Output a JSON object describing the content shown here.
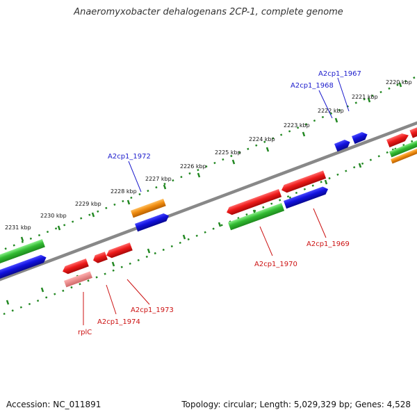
{
  "title": "Anaeromyxobacter dehalogenans 2CP-1, complete genome",
  "footer": {
    "accession": "Accession: NC_011891",
    "summary": "Topology: circular; Length: 5,029,329 bp; Genes: 4,528"
  },
  "kbp_labels": [
    "2220 kbp",
    "2221 kbp",
    "2222 kbp",
    "2223 kbp",
    "2224 kbp",
    "2225 kbp",
    "2226 kbp",
    "2227 kbp",
    "2228 kbp",
    "2229 kbp",
    "2230 kbp",
    "2231 kbp"
  ],
  "genes_top": [
    "A2cp1_1967",
    "A2cp1_1968",
    "A2cp1_1972"
  ],
  "genes_bottom": [
    "A2cp1_1969",
    "A2cp1_1970",
    "A2cp1_1973",
    "A2cp1_1974",
    "rplC"
  ],
  "colors": {
    "forward_label": "#1a1acc",
    "reverse_label": "#cc1111",
    "red": "#e81818",
    "pink": "#e88080",
    "green": "#33bb33",
    "blue": "#1111dd",
    "orange": "#f08c10",
    "backbone": "#888888",
    "ruler": "#228822"
  }
}
